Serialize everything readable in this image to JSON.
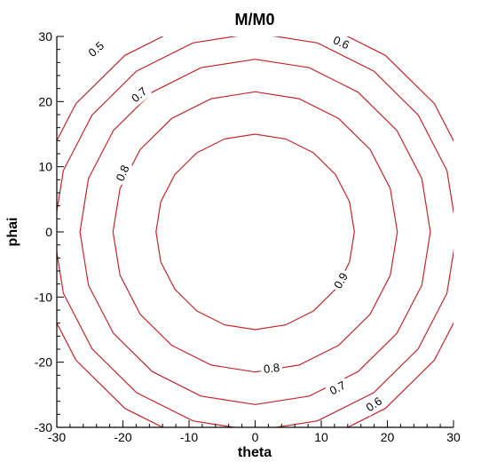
{
  "chart_data": {
    "type": "contour",
    "title": "M/M0",
    "xlabel": "theta",
    "ylabel": "phai",
    "xlim": [
      -30,
      30
    ],
    "ylim": [
      -30,
      30
    ],
    "xticks": [
      -30,
      -20,
      -10,
      0,
      10,
      20,
      30
    ],
    "yticks": [
      -30,
      -20,
      -10,
      0,
      10,
      20,
      30
    ],
    "x_tick_labels": [
      "-30",
      "-20",
      "-10",
      "0",
      "10",
      "20",
      "30"
    ],
    "y_tick_labels": [
      "-30",
      "-20",
      "-10",
      "0",
      "10",
      "20",
      "30"
    ],
    "grid": false,
    "line_color": "#c0282a",
    "levels": [
      {
        "value": "0.9",
        "radius": 15
      },
      {
        "value": "0.8",
        "radius": 21.5
      },
      {
        "value": "0.7",
        "radius": 26.5
      },
      {
        "value": "0.6",
        "radius": 30.5
      },
      {
        "value": "0.5",
        "radius": 33.5
      }
    ],
    "contour_labels": [
      {
        "text": "0.5",
        "x": -24,
        "y": 28
      },
      {
        "text": "0.6",
        "x": 13,
        "y": 29
      },
      {
        "text": "0.7",
        "x": -17.5,
        "y": 21
      },
      {
        "text": "0.8",
        "x": -20,
        "y": 9
      },
      {
        "text": "0.9",
        "x": 13,
        "y": -7.5
      },
      {
        "text": "0.8",
        "x": 2.5,
        "y": -21
      },
      {
        "text": "0.7",
        "x": 12.5,
        "y": -24
      },
      {
        "text": "0.6",
        "x": 18,
        "y": -26.5
      }
    ]
  }
}
